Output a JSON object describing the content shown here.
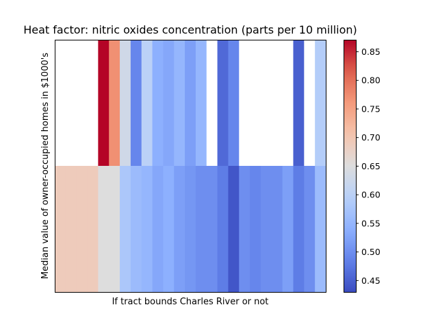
{
  "chart_data": {
    "type": "heatmap",
    "title": "Heat factor: nitric oxides concentration (parts per 10 million)",
    "xlabel": "If tract bounds Charles River or not",
    "ylabel": "Median value of owner-occupied homes in $1000's",
    "colormap": "coolwarm",
    "vmin": 0.43,
    "vmax": 0.871,
    "colorbar_ticks": [
      "0.45",
      "0.50",
      "0.55",
      "0.60",
      "0.65",
      "0.70",
      "0.75",
      "0.80",
      "0.85"
    ],
    "colorbar_tick_values": [
      0.45,
      0.5,
      0.55,
      0.6,
      0.65,
      0.7,
      0.75,
      0.8,
      0.85
    ],
    "rows": [
      {
        "values": [
          null,
          null,
          null,
          null,
          0.871,
          0.77,
          0.63,
          0.49,
          0.6,
          0.54,
          0.53,
          0.55,
          0.52,
          0.55,
          null,
          0.46,
          0.49,
          null,
          null,
          null,
          null,
          null,
          0.45,
          null,
          0.59
        ]
      },
      {
        "values": [
          0.69,
          0.69,
          0.69,
          0.69,
          0.65,
          0.65,
          0.58,
          0.56,
          0.55,
          0.53,
          0.54,
          0.52,
          0.51,
          0.5,
          0.5,
          0.48,
          0.44,
          0.5,
          0.49,
          0.5,
          0.5,
          0.52,
          0.48,
          0.5,
          0.56
        ]
      }
    ],
    "colors": {
      "missing": "#ffffff",
      "frame": "#000000"
    }
  }
}
